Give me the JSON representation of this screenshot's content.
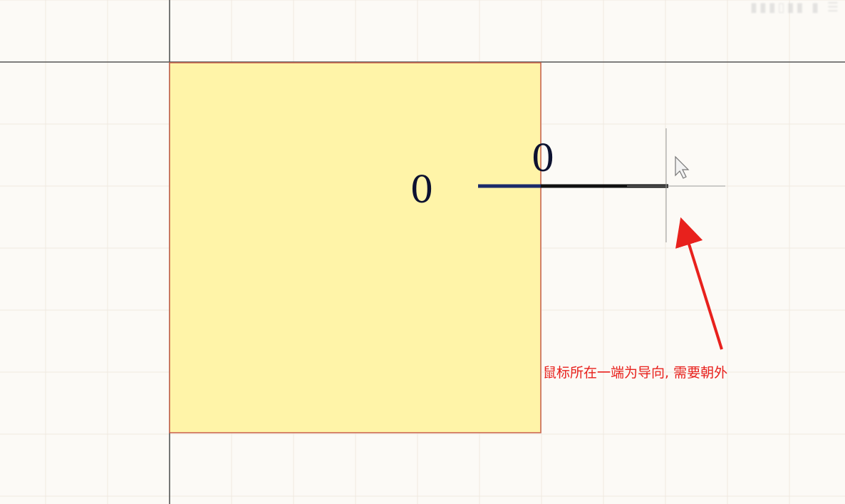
{
  "colors": {
    "background": "#fcfaf6",
    "grid": "#efe9e0",
    "axis": "#555555",
    "component_fill": "#fff4a8",
    "component_border": "#c9604a",
    "pin_inner": "#1a2a6a",
    "pin_outer": "#111111",
    "annotation": "#e8211d",
    "cursor": "#9a9a9a"
  },
  "component": {
    "pin_designator_label": "0",
    "pin_name_label": "0"
  },
  "annotation": {
    "text": "鼠标所在一端为导向, 需要朝外"
  },
  "icons": {
    "cursor": "crosshair-cursor-icon",
    "pointer": "mouse-pointer-icon",
    "arrow": "red-arrow-icon"
  }
}
